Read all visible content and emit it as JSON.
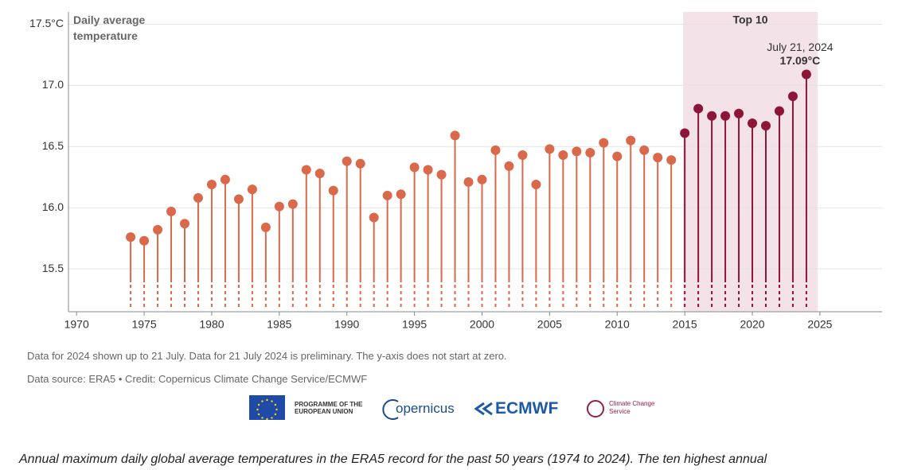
{
  "chart_data": {
    "type": "lollipop",
    "y_label": "Daily average temperature",
    "x": [
      1974,
      1975,
      1976,
      1977,
      1978,
      1979,
      1980,
      1981,
      1982,
      1983,
      1984,
      1985,
      1986,
      1987,
      1988,
      1989,
      1990,
      1991,
      1992,
      1993,
      1994,
      1995,
      1996,
      1997,
      1998,
      1999,
      2000,
      2001,
      2002,
      2003,
      2004,
      2005,
      2006,
      2007,
      2008,
      2009,
      2010,
      2011,
      2012,
      2013,
      2014,
      2015,
      2016,
      2017,
      2018,
      2019,
      2020,
      2021,
      2022,
      2023,
      2024
    ],
    "values": [
      15.76,
      15.73,
      15.82,
      15.97,
      15.87,
      16.08,
      16.19,
      16.23,
      16.07,
      16.15,
      15.84,
      16.01,
      16.03,
      16.31,
      16.28,
      16.14,
      16.38,
      16.36,
      15.92,
      16.1,
      16.11,
      16.33,
      16.31,
      16.27,
      16.59,
      16.21,
      16.23,
      16.47,
      16.34,
      16.43,
      16.19,
      16.48,
      16.43,
      16.46,
      16.45,
      16.53,
      16.42,
      16.55,
      16.47,
      16.41,
      16.39,
      16.61,
      16.81,
      16.75,
      16.75,
      16.77,
      16.69,
      16.67,
      16.79,
      16.91,
      17.09
    ],
    "value_labels": [
      null,
      null,
      null,
      null,
      null,
      null,
      null,
      null,
      null,
      null,
      null,
      null,
      null,
      null,
      null,
      null,
      null,
      null,
      null,
      null,
      null,
      null,
      null,
      null,
      null,
      null,
      null,
      null,
      null,
      null,
      null,
      null,
      null,
      null,
      null,
      null,
      null,
      null,
      null,
      null,
      null,
      null,
      null,
      null,
      null,
      null,
      null,
      null,
      null,
      null,
      "17.09°C"
    ],
    "annotation": "July 21, 2024",
    "color": "#d9694a",
    "highlight_color": "#8c1538",
    "highlight_fill": "#f3e2e7",
    "highlight_label": "Top 10",
    "top_n": 10,
    "xlim": [
      1969.4,
      2029.6
    ],
    "ylim": [
      15.15,
      17.6
    ],
    "xticks": [
      1970,
      1975,
      1980,
      1985,
      1990,
      1995,
      2000,
      2005,
      2010,
      2015,
      2020,
      2025
    ],
    "yticks": [
      15.5,
      {
        "value": 16.0,
        "label": "16.0"
      },
      16.5,
      {
        "value": 17.0,
        "label": "17.0"
      },
      {
        "value": 17.5,
        "label": "17.5°C"
      }
    ],
    "grid": true
  },
  "notes": [
    "Data for 2024 shown up to 21 July. Data for 21 July 2024 is preliminary. The y-axis does not start at zero.",
    "Data source: ERA5 • Credit: Copernicus Climate Change Service/ECMWF"
  ],
  "logos": {
    "eu": "PROGRAMME OF THE EUROPEAN UNION",
    "copernicus": "opernicus",
    "ecmwf": "ECMWF",
    "c3s": "Climate Change Service"
  },
  "caption": "Annual maximum daily global average temperatures in the ERA5 record for the past 50 years (1974 to 2024). The ten highest annual"
}
